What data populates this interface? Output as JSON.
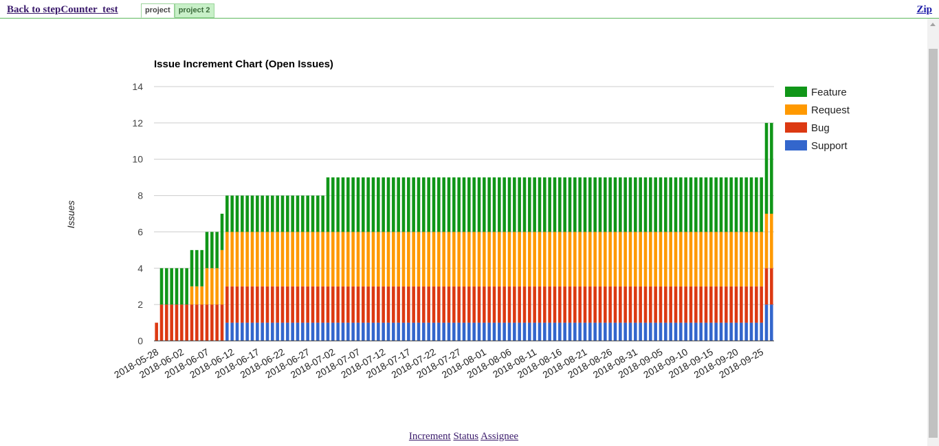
{
  "header": {
    "back_link": "Back to stepCounter_test",
    "tabs": [
      {
        "label": "project",
        "active": true
      },
      {
        "label": "project 2",
        "active": false
      }
    ],
    "zip_link": "Zip"
  },
  "chart_data": {
    "type": "bar",
    "stacked": true,
    "title": "Issue Increment Chart (Open Issues)",
    "ylabel": "Issues",
    "xlabel": "",
    "ylim": [
      0,
      14
    ],
    "yticks": [
      0,
      2,
      4,
      6,
      8,
      10,
      12,
      14
    ],
    "grid": true,
    "legend_position": "right",
    "x_tick_labels": [
      "2018-05-28",
      "2018-06-02",
      "2018-06-07",
      "2018-06-12",
      "2018-06-17",
      "2018-06-22",
      "2018-06-27",
      "2018-07-02",
      "2018-07-07",
      "2018-07-12",
      "2018-07-17",
      "2018-07-22",
      "2018-07-27",
      "2018-08-01",
      "2018-08-06",
      "2018-08-11",
      "2018-08-16",
      "2018-08-21",
      "2018-08-26",
      "2018-08-31",
      "2018-09-05",
      "2018-09-10",
      "2018-09-15",
      "2018-09-20",
      "2018-09-25"
    ],
    "segments": [
      {
        "from": "2018-05-28",
        "to": "2018-05-28",
        "support": 0,
        "bug": 1,
        "request": 0,
        "feature": 0
      },
      {
        "from": "2018-05-29",
        "to": "2018-06-03",
        "support": 0,
        "bug": 2,
        "request": 0,
        "feature": 2
      },
      {
        "from": "2018-06-04",
        "to": "2018-06-06",
        "support": 0,
        "bug": 2,
        "request": 1,
        "feature": 2
      },
      {
        "from": "2018-06-07",
        "to": "2018-06-09",
        "support": 0,
        "bug": 2,
        "request": 2,
        "feature": 2
      },
      {
        "from": "2018-06-10",
        "to": "2018-06-10",
        "support": 0,
        "bug": 2,
        "request": 3,
        "feature": 2
      },
      {
        "from": "2018-06-11",
        "to": "2018-06-30",
        "support": 1,
        "bug": 2,
        "request": 3,
        "feature": 2
      },
      {
        "from": "2018-07-01",
        "to": "2018-09-25",
        "support": 1,
        "bug": 2,
        "request": 3,
        "feature": 3
      },
      {
        "from": "2018-09-26",
        "to": "2018-09-27",
        "support": 2,
        "bug": 2,
        "request": 3,
        "feature": 5
      }
    ],
    "series": [
      {
        "name": "Support",
        "color": "#3366cc"
      },
      {
        "name": "Bug",
        "color": "#dc3912"
      },
      {
        "name": "Request",
        "color": "#ff9900"
      },
      {
        "name": "Feature",
        "color": "#109618"
      }
    ],
    "legend_order": [
      "Feature",
      "Request",
      "Bug",
      "Support"
    ]
  },
  "footer": {
    "links": [
      "Increment",
      "Status",
      "Assignee"
    ]
  }
}
